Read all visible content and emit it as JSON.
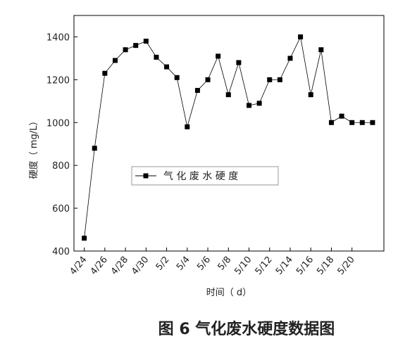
{
  "chart_data": {
    "type": "line",
    "x_label": "时间（ d）",
    "y_label": "硬度（ mg/L）",
    "caption": "图 6 气化废水硬度数据图",
    "categories": [
      "4/24",
      null,
      "4/26",
      null,
      "4/28",
      null,
      "4/30",
      null,
      "5/2",
      null,
      "5/4",
      null,
      "5/6",
      null,
      "5/8",
      null,
      "5/10",
      null,
      "5/12",
      null,
      "5/14",
      null,
      "5/16",
      null,
      "5/18",
      null,
      "5/20",
      null,
      null
    ],
    "series": [
      {
        "name": "气 化 废 水 硬 度",
        "color": "#000000",
        "values": [
          460,
          880,
          1230,
          1290,
          1340,
          1360,
          1380,
          1305,
          1260,
          1210,
          980,
          1150,
          1200,
          1310,
          1130,
          1280,
          1080,
          1090,
          1200,
          1200,
          1300,
          1400,
          1130,
          1340,
          1000,
          1030,
          1000,
          1000,
          1000
        ]
      }
    ],
    "ylim": [
      400,
      1500
    ],
    "yticks": [
      400,
      600,
      800,
      1000,
      1200,
      1400
    ],
    "legend": "center-left",
    "grid": false
  }
}
